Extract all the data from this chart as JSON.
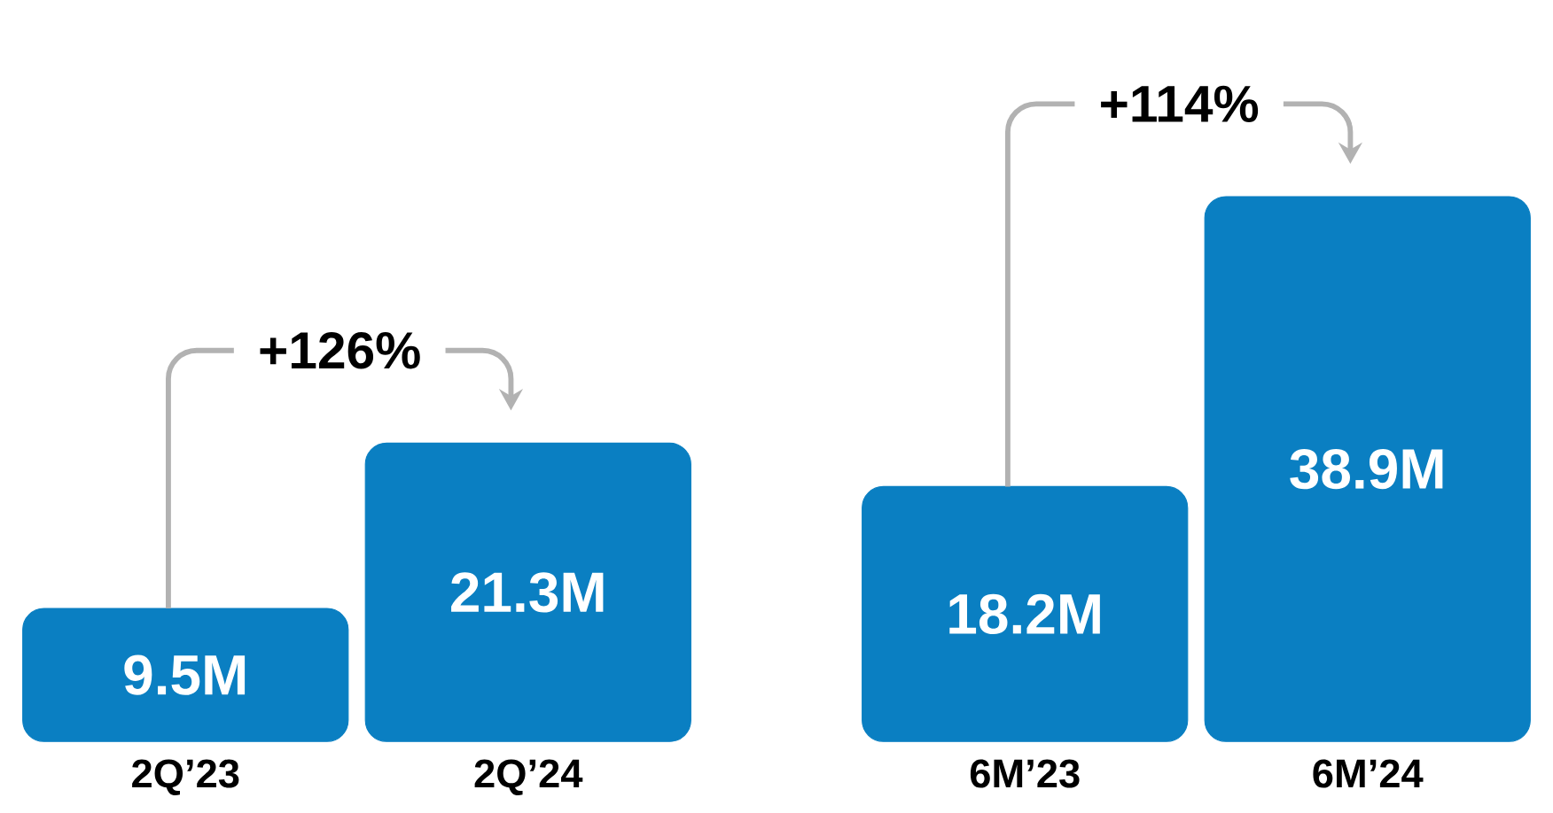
{
  "chart_data": {
    "type": "bar",
    "categories": [
      "2Q’23",
      "2Q’24",
      "6M’23",
      "6M’24"
    ],
    "values": [
      9.5,
      21.3,
      18.2,
      38.9
    ],
    "value_labels": [
      "9.5M",
      "21.3M",
      "18.2M",
      "38.9M"
    ],
    "color": "#0a7fc2",
    "annotations": [
      "+126%",
      "+114%"
    ]
  }
}
